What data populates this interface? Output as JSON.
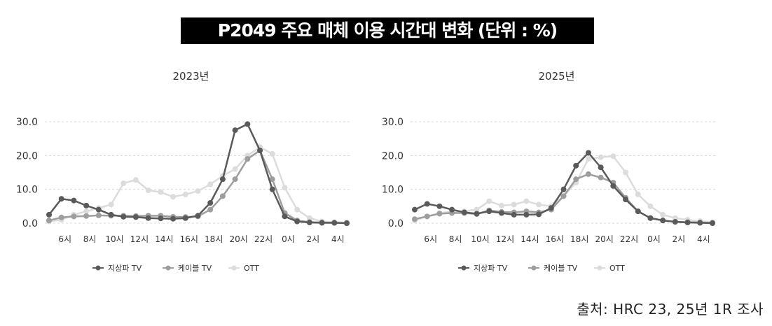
{
  "main_title": "P2049 주요 매체 이용 시간대 변화 (단위 : %)",
  "source": "출처: HRC 23, 25년 1R 조사",
  "colors": {
    "terrestrial": "#5a5a5a",
    "cable": "#9e9e9e",
    "ott": "#dcdcdc",
    "grid": "#d9d9d9",
    "text": "#333333"
  },
  "chart_data": [
    {
      "type": "line",
      "title": "2023년",
      "ylim": [
        0,
        30
      ],
      "yticks": [
        "0.0",
        "10.0",
        "20.0",
        "30.0"
      ],
      "x_tick_labels": [
        "6시",
        "8시",
        "10시",
        "12시",
        "14시",
        "16시",
        "18시",
        "20시",
        "22시",
        "0시",
        "2시",
        "4시"
      ],
      "x": [
        "5시",
        "6시",
        "7시",
        "8시",
        "9시",
        "10시",
        "11시",
        "12시",
        "13시",
        "14시",
        "15시",
        "16시",
        "17시",
        "18시",
        "19시",
        "20시",
        "21시",
        "22시",
        "23시",
        "0시",
        "1시",
        "2시",
        "3시",
        "4시",
        "5시"
      ],
      "legend_position": "bottom",
      "series": [
        {
          "name": "지상파 TV",
          "color_key": "terrestrial",
          "values": [
            2.5,
            7.2,
            6.7,
            5.2,
            4.0,
            2.5,
            1.9,
            1.8,
            1.5,
            1.4,
            1.3,
            1.5,
            2.2,
            6.0,
            13.0,
            27.5,
            29.3,
            21.5,
            10.0,
            2.0,
            0.5,
            0.2,
            0.1,
            0.1,
            0.0
          ]
        },
        {
          "name": "케이블 TV",
          "color_key": "cable",
          "values": [
            0.8,
            1.7,
            2.0,
            2.1,
            2.3,
            2.2,
            2.2,
            2.1,
            2.2,
            2.2,
            1.9,
            1.8,
            2.0,
            4.0,
            8.0,
            13.0,
            19.0,
            21.5,
            13.0,
            3.0,
            0.8,
            0.3,
            0.2,
            0.1,
            0.0
          ]
        },
        {
          "name": "OTT",
          "color_key": "ott",
          "values": [
            0.5,
            1.0,
            2.5,
            3.5,
            4.5,
            5.5,
            11.8,
            12.8,
            9.7,
            9.2,
            7.8,
            8.5,
            9.5,
            11.5,
            14.0,
            16.0,
            20.0,
            22.5,
            20.5,
            10.5,
            4.0,
            1.5,
            0.5,
            0.3,
            0.2
          ]
        }
      ]
    },
    {
      "type": "line",
      "title": "2025년",
      "ylim": [
        0,
        30
      ],
      "yticks": [
        "0.0",
        "10.0",
        "20.0",
        "30.0"
      ],
      "x_tick_labels": [
        "6시",
        "8시",
        "10시",
        "12시",
        "14시",
        "16시",
        "18시",
        "20시",
        "22시",
        "0시",
        "2시",
        "4시"
      ],
      "x": [
        "5시",
        "6시",
        "7시",
        "8시",
        "9시",
        "10시",
        "11시",
        "12시",
        "13시",
        "14시",
        "15시",
        "16시",
        "17시",
        "18시",
        "19시",
        "20시",
        "21시",
        "22시",
        "23시",
        "0시",
        "1시",
        "2시",
        "3시",
        "4시",
        "5시"
      ],
      "legend_position": "bottom",
      "series": [
        {
          "name": "지상파 TV",
          "color_key": "terrestrial",
          "values": [
            4.0,
            5.7,
            5.0,
            4.0,
            3.2,
            2.8,
            3.5,
            3.0,
            2.5,
            2.5,
            2.6,
            4.5,
            10.0,
            17.0,
            20.8,
            16.5,
            11.0,
            7.0,
            3.5,
            1.5,
            0.8,
            0.4,
            0.2,
            0.1,
            0.0
          ]
        },
        {
          "name": "케이블 TV",
          "color_key": "cable",
          "values": [
            1.2,
            2.0,
            2.8,
            3.0,
            3.0,
            2.7,
            3.8,
            3.3,
            3.2,
            3.5,
            3.2,
            4.0,
            8.0,
            13.0,
            14.5,
            13.5,
            12.0,
            7.5,
            3.5,
            1.5,
            0.8,
            0.4,
            0.3,
            0.2,
            0.1
          ]
        },
        {
          "name": "OTT",
          "color_key": "ott",
          "values": [
            0.8,
            2.0,
            3.0,
            3.5,
            3.5,
            4.0,
            6.5,
            5.2,
            5.5,
            6.5,
            5.5,
            5.0,
            8.0,
            12.0,
            19.0,
            19.5,
            19.8,
            15.0,
            8.5,
            5.0,
            2.5,
            1.5,
            1.0,
            0.6,
            0.3
          ]
        }
      ]
    }
  ]
}
